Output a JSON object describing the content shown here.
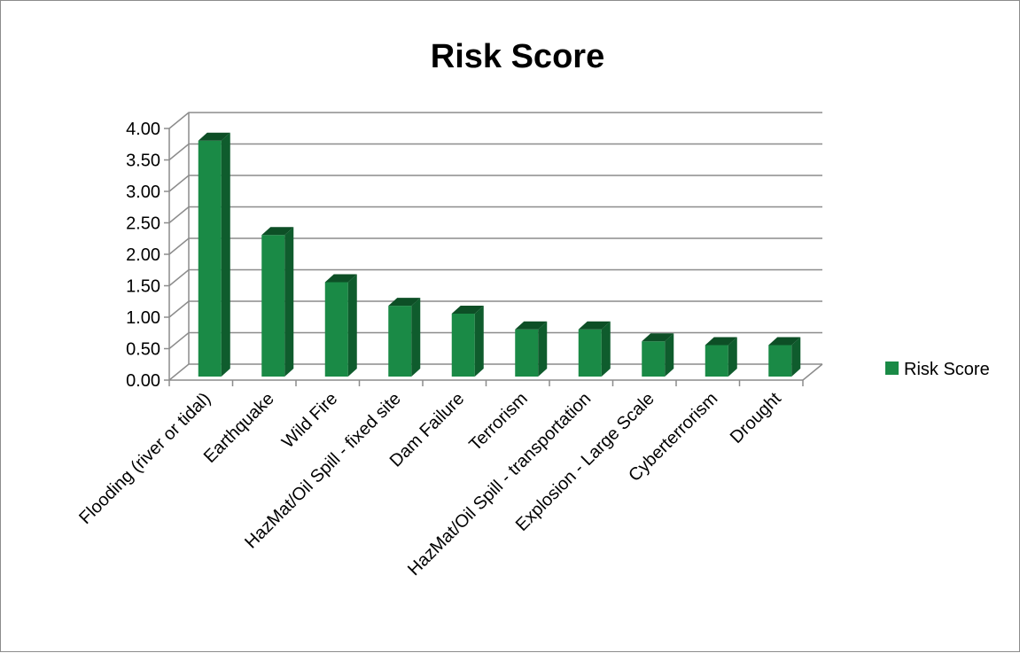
{
  "chart_data": {
    "type": "bar",
    "title": "Risk Score",
    "categories": [
      "Flooding (river or tidal)",
      "Earthquake",
      "Wild Fire",
      "HazMat/Oil Spill - fixed site",
      "Dam Failure",
      "Terrorism",
      "HazMat/Oil Spill - transportation",
      "Explosion - Large Scale",
      "Cyberterrorism",
      "Drought"
    ],
    "series": [
      {
        "name": "Risk Score",
        "values": [
          3.75,
          2.25,
          1.5,
          1.125,
          1.0,
          0.75,
          0.75,
          0.56,
          0.5,
          0.5
        ],
        "color": "#1a8a46"
      }
    ],
    "ylim": [
      0,
      4
    ],
    "yticks": [
      "0.00",
      "0.50",
      "1.00",
      "1.50",
      "2.00",
      "2.50",
      "3.00",
      "3.50",
      "4.00"
    ],
    "grid": true,
    "legend": "right",
    "style": "3d-column"
  }
}
